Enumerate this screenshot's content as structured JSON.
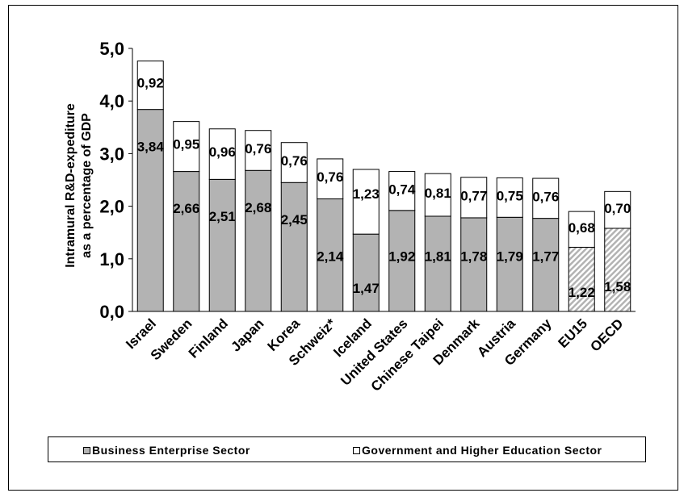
{
  "chart_data": {
    "type": "bar",
    "stacked": true,
    "ylabel": "Intramural R&D-expediture\nas a percentage of GDP",
    "ylim": [
      0,
      5
    ],
    "yticks": [
      "0,0",
      "1,0",
      "2,0",
      "3,0",
      "4,0",
      "5,0"
    ],
    "categories": [
      "Israel",
      "Sweden",
      "Finland",
      "Japan",
      "Korea",
      "Schweiz*",
      "Iceland",
      "United States",
      "Chinese Taipei",
      "Denmark",
      "Austria",
      "Germany",
      "EU15",
      "OECD"
    ],
    "series": [
      {
        "name": "Business Enterprise Sector",
        "color": "#b3b3b3",
        "values": [
          3.84,
          2.66,
          2.51,
          2.68,
          2.45,
          2.14,
          1.47,
          1.92,
          1.81,
          1.78,
          1.79,
          1.77,
          1.22,
          1.58
        ],
        "labels": [
          "3,84",
          "2,66",
          "2,51",
          "2,68",
          "2,45",
          "2,14",
          "1,47",
          "1,92",
          "1,81",
          "1,78",
          "1,79",
          "1,77",
          "1,22",
          "1,58"
        ]
      },
      {
        "name": "Government and Higher Education Sector",
        "color": "#ffffff",
        "values": [
          0.92,
          0.95,
          0.96,
          0.76,
          0.76,
          0.76,
          1.23,
          0.74,
          0.81,
          0.77,
          0.75,
          0.76,
          0.68,
          0.7
        ],
        "labels": [
          "0,92",
          "0,95",
          "0,96",
          "0,76",
          "0,76",
          "0,76",
          "1,23",
          "0,74",
          "0,81",
          "0,77",
          "0,75",
          "0,76",
          "0,68",
          "0,70"
        ]
      }
    ],
    "hatched_categories": [
      "EU15",
      "OECD"
    ],
    "legend_position": "bottom",
    "grid": false
  }
}
